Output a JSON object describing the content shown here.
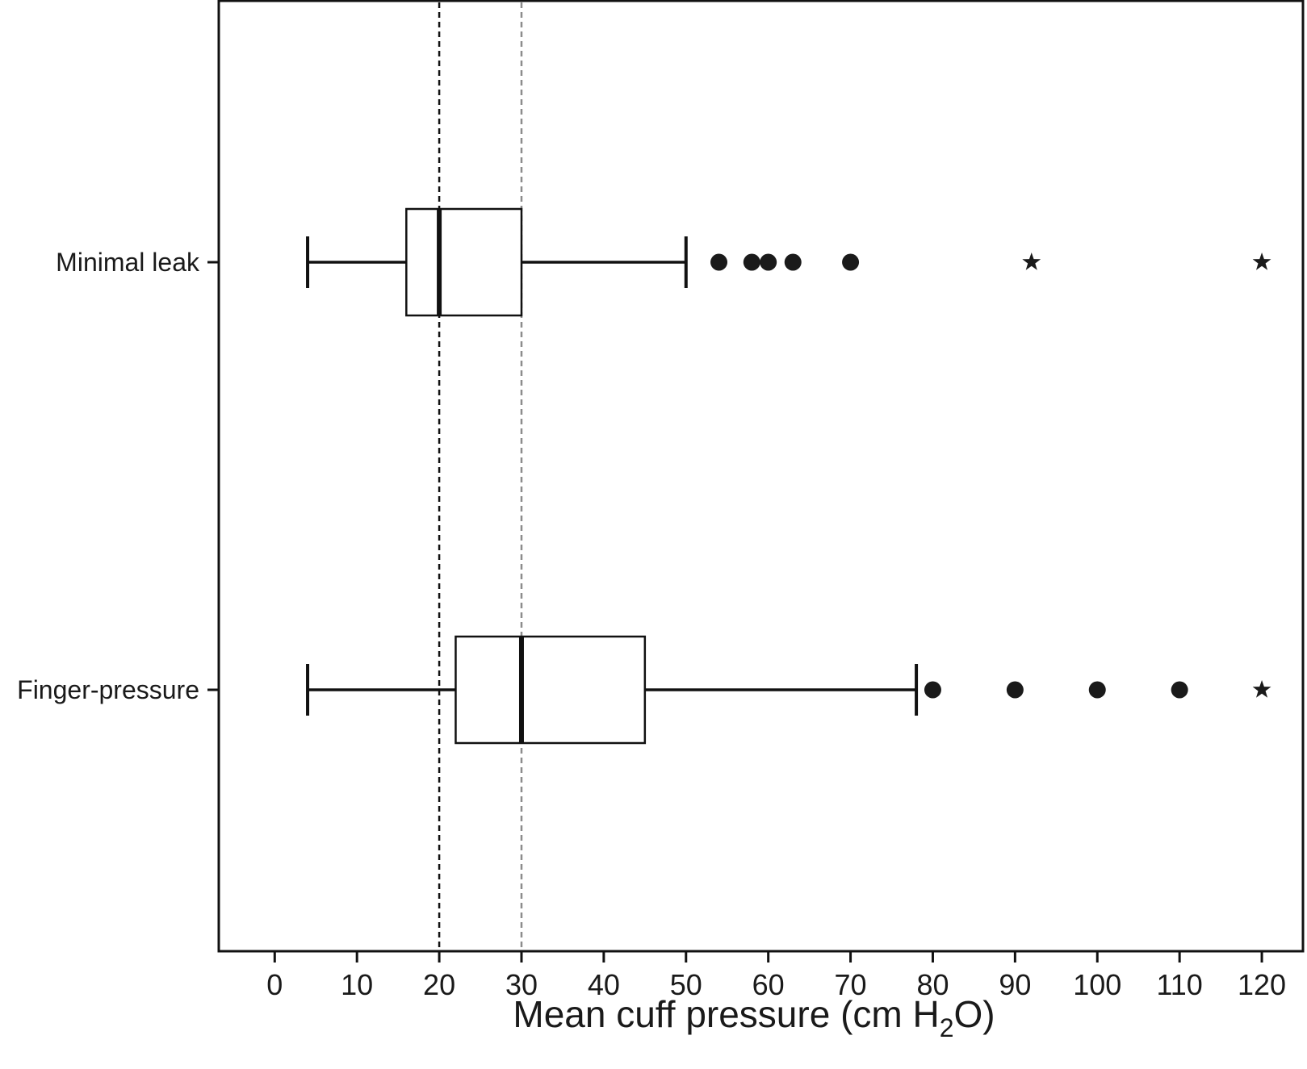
{
  "chart_data": {
    "type": "boxplot",
    "orientation": "horizontal",
    "xlabel": {
      "prefix": "Mean cuff pressure (cm H",
      "subscript": "2",
      "suffix": "O)"
    },
    "xlim": [
      -6.8,
      125
    ],
    "xticks": [
      0,
      10,
      20,
      30,
      40,
      50,
      60,
      70,
      80,
      90,
      100,
      110,
      120
    ],
    "grid": false,
    "reference_lines": [
      {
        "x": 20,
        "style": "dashed",
        "color": "#111111"
      },
      {
        "x": 30,
        "style": "dashed",
        "color": "#8c8c8c"
      }
    ],
    "series": [
      {
        "name": "Minimal leak",
        "whisker_low": 4,
        "q1": 16,
        "median": 20,
        "q3": 30,
        "whisker_high": 50,
        "outliers": [
          54,
          58,
          60,
          63,
          70
        ],
        "extremes": [
          92,
          120
        ]
      },
      {
        "name": "Finger-pressure",
        "whisker_low": 4,
        "q1": 22,
        "median": 30,
        "q3": 45,
        "whisker_high": 78,
        "outliers": [
          80,
          90,
          100,
          110
        ],
        "extremes": [
          120
        ]
      }
    ],
    "colors": {
      "axis": "#111111",
      "box_fill": "#ffffff",
      "marker": "#1a1a1a"
    }
  }
}
